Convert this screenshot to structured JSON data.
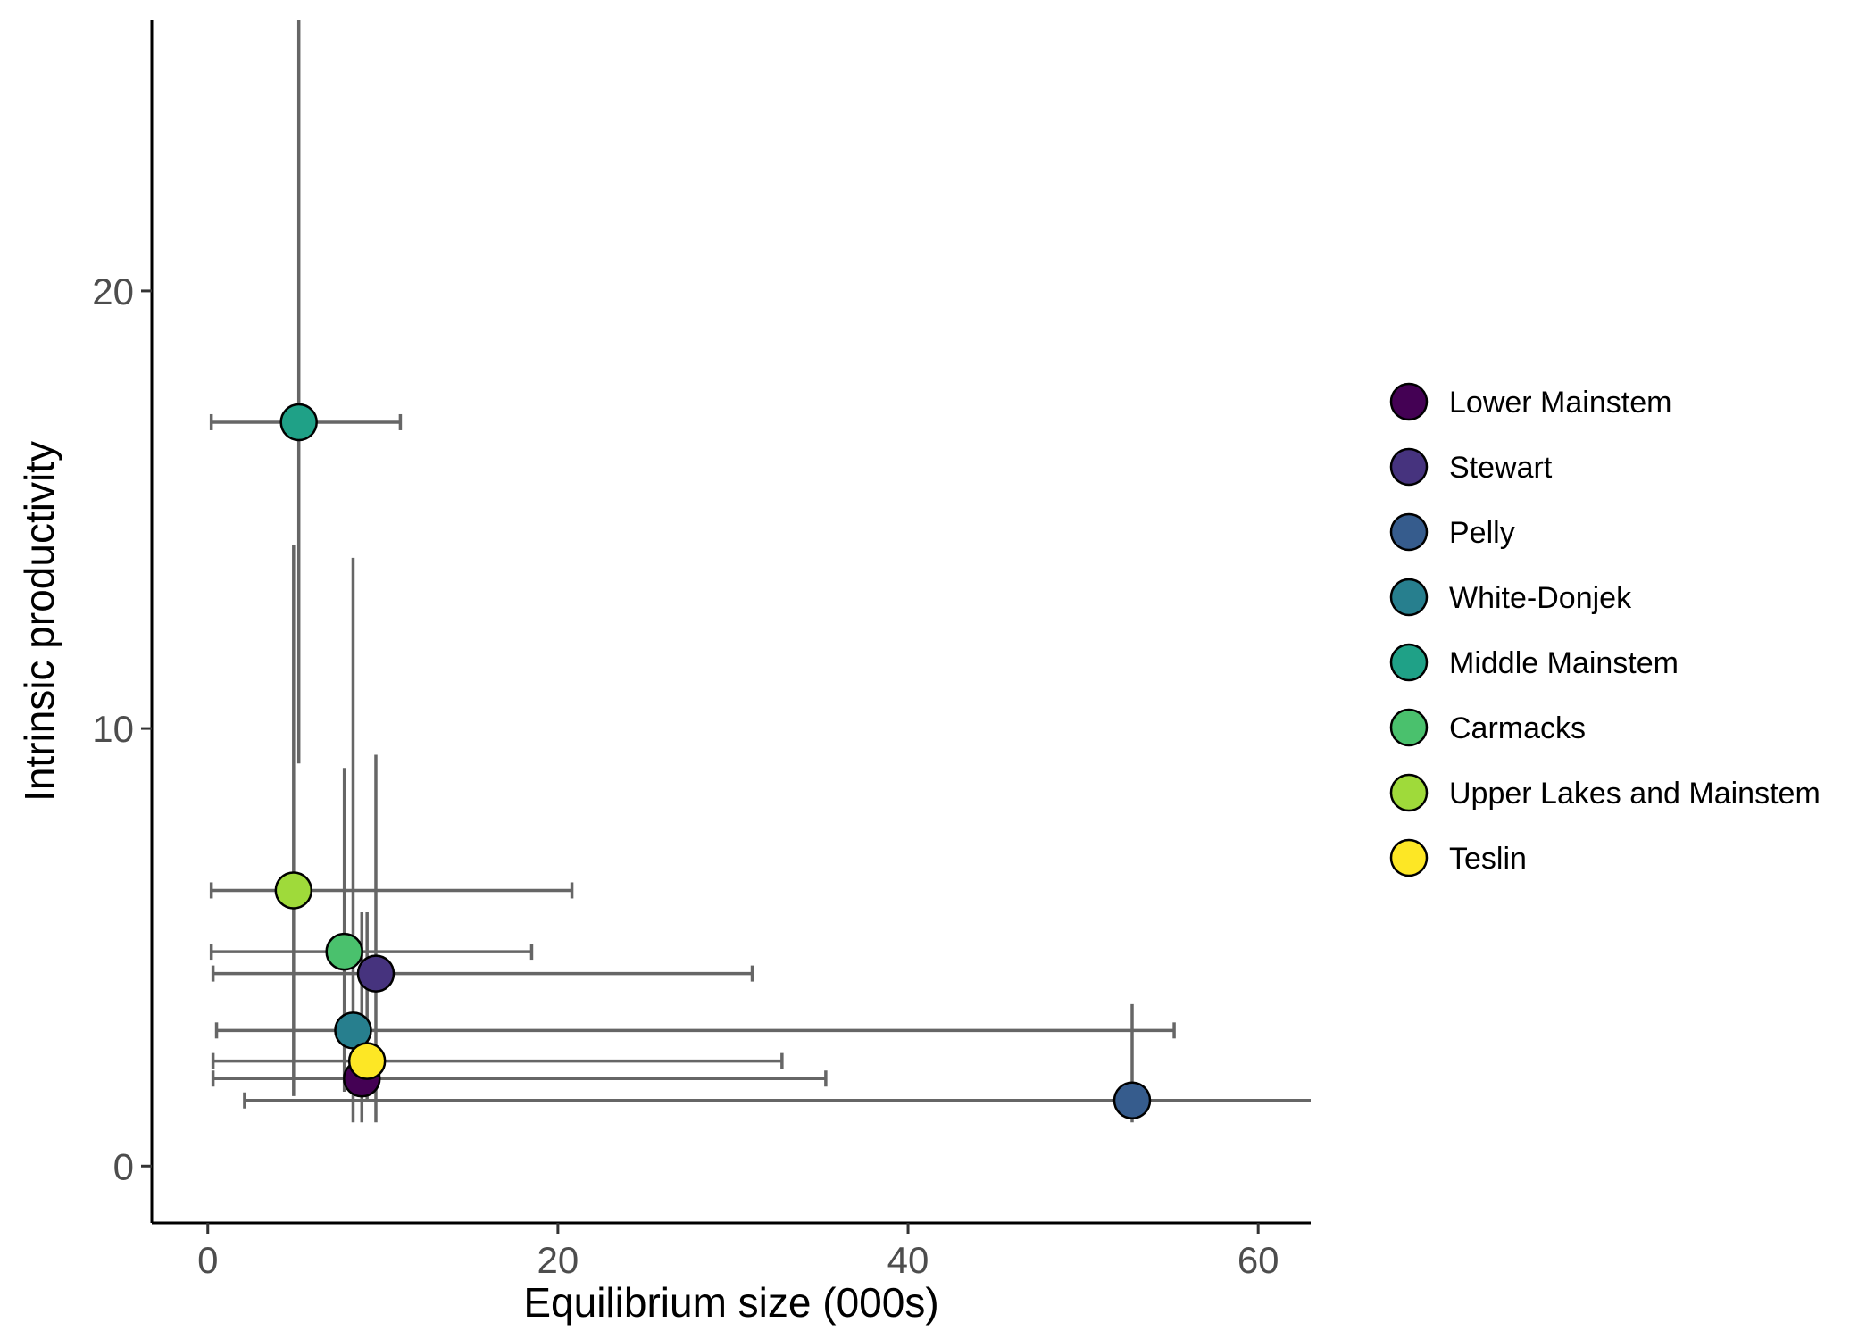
{
  "chart_data": {
    "type": "scatter",
    "xlabel": "Equilibrium size (000s)",
    "ylabel": "Intrinsic productivity",
    "xlim": [
      -3.2,
      63
    ],
    "ylim": [
      -1.3,
      26.2
    ],
    "x_ticks": [
      0,
      20,
      40,
      60
    ],
    "y_ticks": [
      0,
      10,
      20
    ],
    "grid": false,
    "legend_position": "right",
    "series": [
      {
        "name": "Lower Mainstem",
        "color": "#440154",
        "x": 8.8,
        "y": 2.0,
        "x_low": 0.3,
        "x_high": 35.3,
        "y_low": 1.0,
        "y_high": 5.8
      },
      {
        "name": "Stewart",
        "color": "#46337E",
        "x": 9.6,
        "y": 4.4,
        "x_low": 0.3,
        "x_high": 31.1,
        "y_low": 1.0,
        "y_high": 9.4
      },
      {
        "name": "Pelly",
        "color": "#365C8D",
        "x": 52.8,
        "y": 1.5,
        "x_low": 2.1,
        "x_high": 63.0,
        "y_low": 1.0,
        "y_high": 3.7
      },
      {
        "name": "White-Donjek",
        "color": "#277F8E",
        "x": 8.3,
        "y": 3.1,
        "x_low": 0.5,
        "x_high": 55.2,
        "y_low": 1.0,
        "y_high": 13.9
      },
      {
        "name": "Middle Mainstem",
        "color": "#1FA187",
        "x": 5.2,
        "y": 17.0,
        "x_low": 0.2,
        "x_high": 11.0,
        "y_low": 9.2,
        "y_high": 26.2
      },
      {
        "name": "Carmacks",
        "color": "#4AC16D",
        "x": 7.8,
        "y": 4.9,
        "x_low": 0.2,
        "x_high": 18.5,
        "y_low": 1.7,
        "y_high": 9.1
      },
      {
        "name": "Upper Lakes and Mainstem",
        "color": "#9FDA3A",
        "x": 4.9,
        "y": 6.3,
        "x_low": 0.2,
        "x_high": 20.8,
        "y_low": 1.6,
        "y_high": 14.2
      },
      {
        "name": "Teslin",
        "color": "#FDE725",
        "x": 9.1,
        "y": 2.4,
        "x_low": 0.3,
        "x_high": 32.8,
        "y_low": 1.5,
        "y_high": 5.8
      }
    ]
  }
}
